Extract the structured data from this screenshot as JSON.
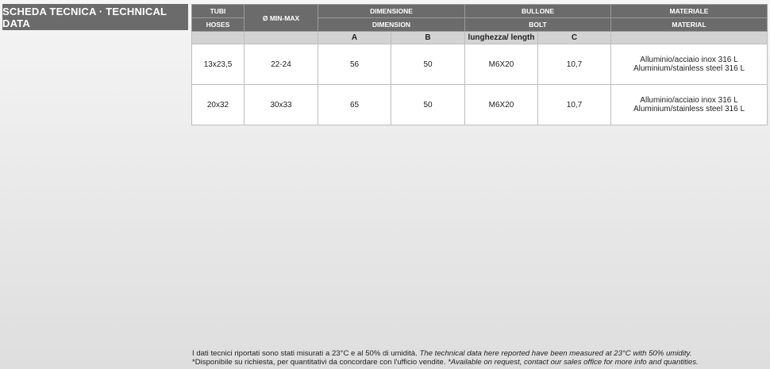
{
  "title": "SCHEDA TECNICA · TECHNICAL DATA",
  "headers": {
    "tubi": "TUBI",
    "hoses": "HOSES",
    "diameter": "Ø MIN-MAX",
    "dimensione": "DIMENSIONE",
    "dimension": "DIMENSION",
    "bullone": "BULLONE",
    "bolt": "BOLT",
    "materiale": "MATERIALE",
    "material": "MATERIAL"
  },
  "subheaders": {
    "a": "A",
    "b": "B",
    "length": "lunghezza/ length",
    "c": "C"
  },
  "rows": [
    {
      "hose": "13x23,5",
      "diameter": "22-24",
      "a": "56",
      "b": "50",
      "length": "M6X20",
      "c": "10,7",
      "material_it": "Alluminio/acciaio inox 316 L",
      "material_en": "Aluminium/stainless steel 316 L"
    },
    {
      "hose": "20x32",
      "diameter": "30x33",
      "a": "65",
      "b": "50",
      "length": "M6X20",
      "c": "10,7",
      "material_it": "Alluminio/acciaio inox 316 L",
      "material_en": "Aluminium/stainless steel 316 L"
    }
  ],
  "footer": {
    "line1_it": "I dati tecnici riportati sono stati misurati a 23°C e al 50% di umidità.",
    "line1_en": "The technical data here reported have been measured at 23°C with 50% umidity.",
    "line2_it": "*Disponibile su richiesta, per quantitativi da concordare con l'ufficio vendite.",
    "line2_en": "*Available on request, contact our sales office for more info and quantities."
  },
  "colors": {
    "header_bg": "#6b6b6b",
    "subheader_bg": "#d3d3d3"
  }
}
